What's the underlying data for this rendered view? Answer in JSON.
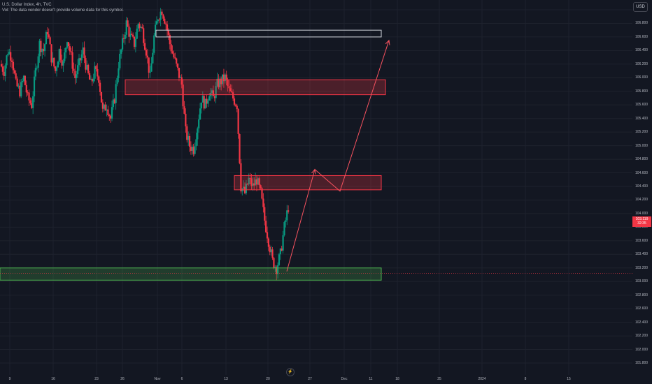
{
  "legend": {
    "title": "U.S. Dollar Index, 4h, TVC",
    "volume_note": "Vol: The data vendor doesn't provide volume data for this symbol."
  },
  "currency_button": "USD",
  "current_price": {
    "price": "103.119",
    "countdown": "32:35"
  },
  "price_axis_labels": [
    "107.000",
    "106.800",
    "106.600",
    "106.400",
    "106.200",
    "106.000",
    "105.800",
    "105.600",
    "105.400",
    "105.200",
    "105.000",
    "104.800",
    "104.600",
    "104.400",
    "104.200",
    "104.000",
    "103.800",
    "103.600",
    "103.400",
    "103.200",
    "103.000",
    "102.800",
    "102.600",
    "102.400",
    "102.200",
    "102.000",
    "101.800"
  ],
  "time_axis_labels": [
    "9",
    "16",
    "23",
    "26",
    "Nov",
    "6",
    "13",
    "20",
    "27",
    "Dec",
    "11",
    "18",
    "25",
    "2024",
    "8",
    "15"
  ],
  "scroll_icon": "lightning-icon",
  "colors": {
    "background": "#131722",
    "up": "#089981",
    "down": "#f23645",
    "resistance_zone": "#f23645",
    "support_zone": "#4caf50",
    "white_zone": "#d1d4dc",
    "arrow": "#f7525f"
  },
  "chart_data": {
    "type": "candlestick",
    "symbol": "U.S. Dollar Index",
    "interval": "4h",
    "source": "TVC",
    "currency": "USD",
    "ylim": [
      101.7,
      107.0
    ],
    "last_price": 103.119,
    "zones": [
      {
        "kind": "white",
        "low": 106.6,
        "high": 106.7
      },
      {
        "kind": "red",
        "low": 105.75,
        "high": 105.97
      },
      {
        "kind": "red",
        "low": 104.35,
        "high": 104.56
      },
      {
        "kind": "green",
        "low": 103.02,
        "high": 103.2
      }
    ],
    "projection_path": [
      103.15,
      104.65,
      104.33,
      106.55
    ],
    "close_path": [
      106.2,
      106.1,
      106.4,
      106.3,
      105.9,
      105.8,
      106.0,
      105.7,
      105.6,
      106.1,
      106.5,
      106.4,
      106.7,
      106.3,
      106.1,
      106.4,
      106.2,
      106.6,
      106.3,
      106.0,
      106.2,
      106.4,
      106.1,
      105.9,
      106.1,
      106.0,
      105.5,
      105.6,
      105.4,
      105.7,
      106.2,
      106.5,
      106.8,
      106.6,
      106.5,
      106.8,
      106.7,
      106.4,
      106.0,
      106.6,
      106.9,
      107.0,
      106.8,
      106.5,
      106.3,
      106.1,
      105.9,
      105.2,
      105.0,
      104.95,
      105.3,
      105.7,
      105.6,
      105.8,
      105.7,
      105.9,
      105.95,
      106.0,
      105.8,
      105.7,
      105.6,
      104.4,
      104.3,
      104.5,
      104.4,
      104.5,
      104.3,
      103.9,
      103.6,
      103.3,
      103.2,
      103.4,
      103.8,
      104.1
    ]
  }
}
